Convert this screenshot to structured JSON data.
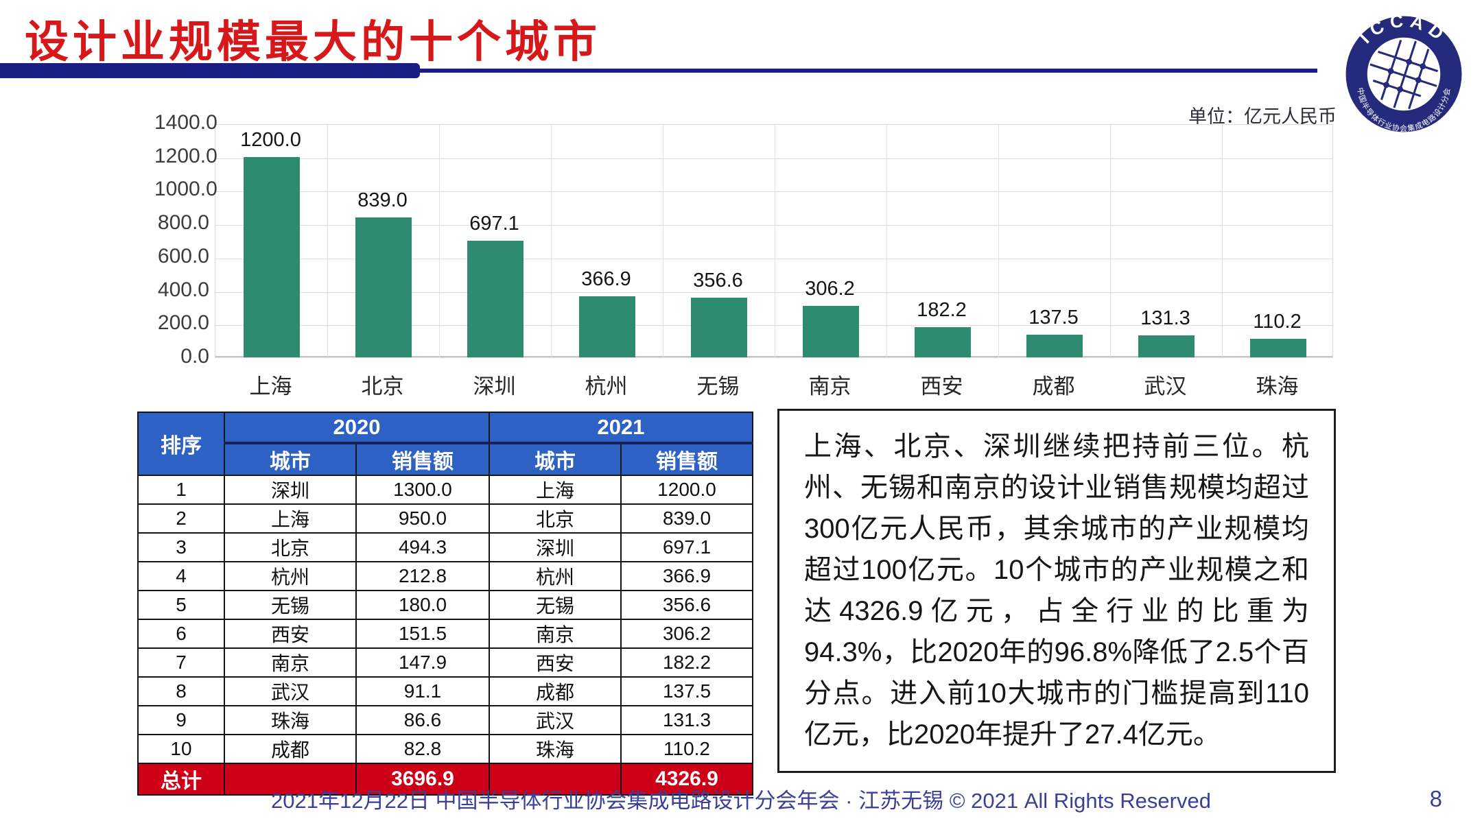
{
  "header": {
    "title": "设计业规模最大的十个城市",
    "unit_label": "单位：亿元人民币"
  },
  "logo": {
    "top_text": "ICCAD",
    "bottom_text": "中国半导体行业协会集成电路设计分会",
    "ring_color": "#252a7d"
  },
  "chart_data": {
    "type": "bar",
    "categories": [
      "上海",
      "北京",
      "深圳",
      "杭州",
      "无锡",
      "南京",
      "西安",
      "成都",
      "武汉",
      "珠海"
    ],
    "values": [
      1200.0,
      839.0,
      697.1,
      366.9,
      356.6,
      306.2,
      182.2,
      137.5,
      131.3,
      110.2
    ],
    "value_labels": [
      "1200.0",
      "839.0",
      "697.1",
      "366.9",
      "356.6",
      "306.2",
      "182.2",
      "137.5",
      "131.3",
      "110.2"
    ],
    "title": "",
    "xlabel": "",
    "ylabel": "",
    "unit": "亿元人民币",
    "ylim": [
      0,
      1400
    ],
    "ytick_step": 200,
    "ytick_labels": [
      "1400.0",
      "1200.0",
      "1000.0",
      "800.0",
      "600.0",
      "400.0",
      "200.0",
      "0.0"
    ],
    "grid": true,
    "legend": "none",
    "bar_color": "#2e8b70"
  },
  "table": {
    "columns": {
      "rank": "排序",
      "city": "城市",
      "sales": "销售额"
    },
    "years": [
      "2020",
      "2021"
    ],
    "rows": [
      [
        "1",
        "深圳",
        "1300.0",
        "上海",
        "1200.0"
      ],
      [
        "2",
        "上海",
        "950.0",
        "北京",
        "839.0"
      ],
      [
        "3",
        "北京",
        "494.3",
        "深圳",
        "697.1"
      ],
      [
        "4",
        "杭州",
        "212.8",
        "杭州",
        "366.9"
      ],
      [
        "5",
        "无锡",
        "180.0",
        "无锡",
        "356.6"
      ],
      [
        "6",
        "西安",
        "151.5",
        "南京",
        "306.2"
      ],
      [
        "7",
        "南京",
        "147.9",
        "西安",
        "182.2"
      ],
      [
        "8",
        "武汉",
        "91.1",
        "成都",
        "137.5"
      ],
      [
        "9",
        "珠海",
        "86.6",
        "武汉",
        "131.3"
      ],
      [
        "10",
        "成都",
        "82.8",
        "珠海",
        "110.2"
      ]
    ],
    "total": {
      "label": "总计",
      "sales_2020": "3696.9",
      "sales_2021": "4326.9"
    },
    "header_color": "#2d62c4",
    "total_color": "#ce0018"
  },
  "commentary": {
    "text": "上海、北京、深圳继续把持前三位。杭州、无锡和南京的设计业销售规模均超过300亿元人民币，其余城市的产业规模均超过100亿元。10个城市的产业规模之和达4326.9亿元，占全行业的比重为94.3%，比2020年的96.8%降低了2.5个百分点。进入前10大城市的门槛提高到110亿元，比2020年提升了27.4亿元。"
  },
  "footer": {
    "text": "2021年12月22日 中国半导体行业协会集成电路设计分会年会 · 江苏无锡 © 2021 All Rights Reserved",
    "page_number": "8"
  }
}
